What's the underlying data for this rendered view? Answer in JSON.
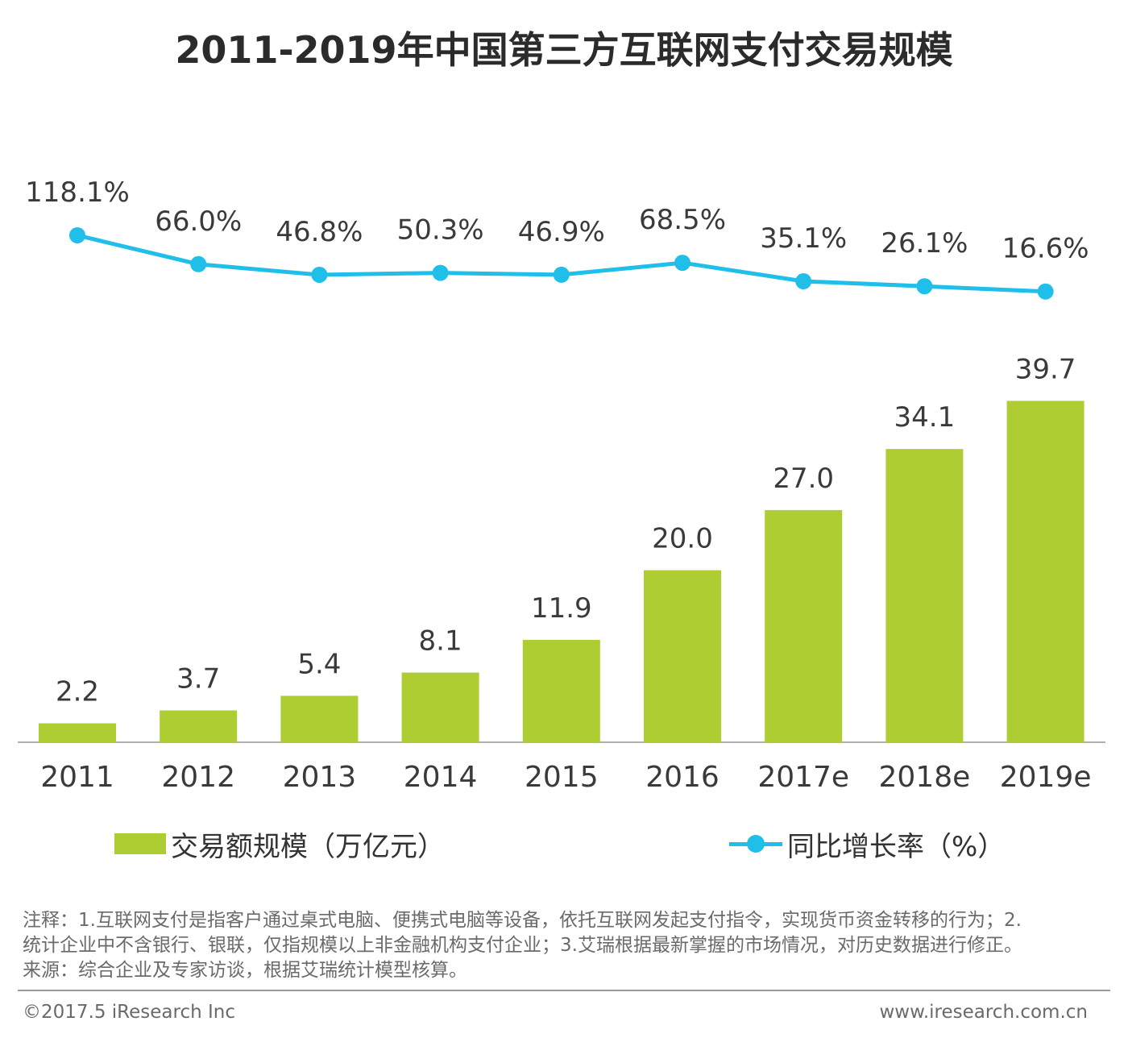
{
  "title": "2011-2019年中国第三方互联网支付交易规模",
  "colors": {
    "bar": "#adcd33",
    "line": "#1fbfe9",
    "text": "#3a3a3a",
    "axis": "#b0b0b0"
  },
  "chart_data": {
    "type": "bar+line",
    "title": "2011-2019年中国第三方互联网支付交易规模",
    "categories": [
      "2011",
      "2012",
      "2013",
      "2014",
      "2015",
      "2016",
      "2017e",
      "2018e",
      "2019e"
    ],
    "series": [
      {
        "name": "交易额规模（万亿元）",
        "type": "bar",
        "values": [
          2.2,
          3.7,
          5.4,
          8.1,
          11.9,
          20.0,
          27.0,
          34.1,
          39.7
        ],
        "labels": [
          "2.2",
          "3.7",
          "5.4",
          "8.1",
          "11.9",
          "20.0",
          "27.0",
          "34.1",
          "39.7"
        ]
      },
      {
        "name": "同比增长率（%）",
        "type": "line",
        "values": [
          118.1,
          66.0,
          46.8,
          50.3,
          46.9,
          68.5,
          35.1,
          26.1,
          16.6
        ],
        "labels": [
          "118.1%",
          "66.0%",
          "46.8%",
          "50.3%",
          "46.9%",
          "68.5%",
          "35.1%",
          "26.1%",
          "16.6%"
        ]
      }
    ],
    "legend_position": "bottom",
    "grid": false
  },
  "legend": {
    "bar_label": "交易额规模（万亿元）",
    "line_label": "同比增长率（%）"
  },
  "notes": {
    "line1": "注释：1.互联网支付是指客户通过桌式电脑、便携式电脑等设备，依托互联网发起支付指令，实现货币资金转移的行为；2.",
    "line2": "统计企业中不含银行、银联，仅指规模以上非金融机构支付企业；3.艾瑞根据最新掌握的市场情况，对历史数据进行修正。",
    "line3": "来源：综合企业及专家访谈，根据艾瑞统计模型核算。"
  },
  "footer": {
    "copyright": "©2017.5 iResearch Inc",
    "website": "www.iresearch.com.cn"
  }
}
